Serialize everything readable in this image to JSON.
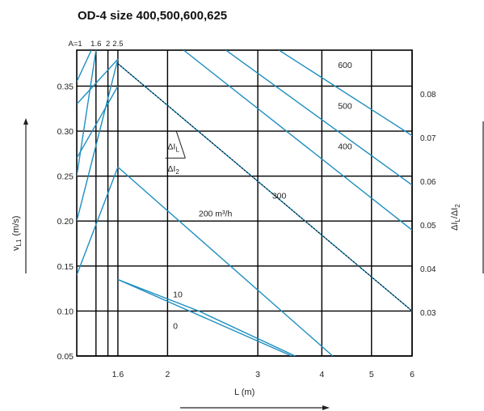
{
  "chart_data": {
    "type": "line",
    "title": "OD-4 size  400,500,600,625",
    "xlabel": "L (m)",
    "ylabel_left": "v",
    "ylabel_left_sub": "L1",
    "ylabel_left_unit": "(m/s)",
    "ylabel_right": "ΔI",
    "ylabel_right_sub1": "L",
    "ylabel_right_mid": "/ΔI",
    "ylabel_right_sub2": "2",
    "x_scale": "log",
    "x_ticks": [
      1.6,
      2,
      3,
      4,
      5,
      6
    ],
    "x_tick_labels": [
      "1.6",
      "2",
      "3",
      "4",
      "5",
      "6"
    ],
    "top_tick_labels": [
      "A=1",
      "1.6",
      "2",
      "2.5"
    ],
    "y_left_ticks": [
      0.05,
      0.1,
      0.15,
      0.2,
      0.25,
      0.3,
      0.35
    ],
    "y_left_tick_labels": [
      "0.05",
      "0.10",
      "0.15",
      "0.20",
      "0.25",
      "0.30",
      "0.35"
    ],
    "y_right_ticks": [
      0.03,
      0.04,
      0.05,
      0.06,
      0.07,
      0.08
    ],
    "y_right_tick_labels": [
      "0.03",
      "0.04",
      "0.05",
      "0.06",
      "0.07",
      "0.08"
    ],
    "grid": true,
    "rising_lines": [
      {
        "label": "A=1",
        "points": [
          [
            1.33,
            0.25
          ],
          [
            1.45,
            0.39
          ]
        ]
      },
      {
        "label": "1.6",
        "points": [
          [
            1.33,
            0.2
          ],
          [
            1.6,
            0.38
          ]
        ]
      },
      {
        "label": "2",
        "points": [
          [
            1.33,
            0.14
          ],
          [
            1.6,
            0.26
          ]
        ]
      },
      {
        "label": "2.5",
        "points": [
          [
            1.33,
            0.27
          ],
          [
            1.6,
            0.35
          ]
        ]
      },
      {
        "label": "",
        "points": [
          [
            1.33,
            0.33
          ],
          [
            1.6,
            0.38
          ]
        ]
      },
      {
        "label": "",
        "points": [
          [
            1.33,
            0.355
          ],
          [
            1.42,
            0.39
          ]
        ]
      }
    ],
    "series": [
      {
        "name": "0",
        "points": [
          [
            1.6,
            0.135
          ],
          [
            4.6,
            0.02
          ]
        ]
      },
      {
        "name": "10",
        "points": [
          [
            1.6,
            0.135
          ],
          [
            2.3,
            0.1
          ],
          [
            4.6,
            0.02
          ]
        ]
      },
      {
        "name": "200 m³/h",
        "points": [
          [
            1.6,
            0.26
          ],
          [
            4.2,
            0.05
          ]
        ]
      },
      {
        "name": "300",
        "points": [
          [
            1.6,
            0.375
          ],
          [
            6.0,
            0.1
          ]
        ]
      },
      {
        "name": "400",
        "points": [
          [
            2.15,
            0.39
          ],
          [
            6.0,
            0.19
          ]
        ]
      },
      {
        "name": "500",
        "points": [
          [
            2.6,
            0.39
          ],
          [
            6.0,
            0.24
          ]
        ]
      },
      {
        "name": "600",
        "points": [
          [
            3.3,
            0.39
          ],
          [
            6.0,
            0.295
          ]
        ]
      }
    ],
    "dotted_line": {
      "points": [
        [
          1.6,
          0.375
        ],
        [
          6.0,
          0.1
        ]
      ]
    },
    "annotations": [
      {
        "text": "ΔI",
        "sub": "L",
        "x": 2.0,
        "y": 0.28
      },
      {
        "text": "ΔI",
        "sub": "2",
        "x": 2.0,
        "y": 0.255
      },
      {
        "text": "200 m³/h",
        "x": 2.3,
        "y": 0.205
      },
      {
        "text": "300",
        "x": 3.2,
        "y": 0.225
      },
      {
        "text": "400",
        "x": 4.3,
        "y": 0.28
      },
      {
        "text": "500",
        "x": 4.3,
        "y": 0.325
      },
      {
        "text": "600",
        "x": 4.3,
        "y": 0.37
      },
      {
        "text": "10",
        "x": 2.05,
        "y": 0.115
      },
      {
        "text": "0",
        "x": 2.05,
        "y": 0.08
      }
    ],
    "colors": {
      "lines": "#1f8fc0",
      "grid": "#000000",
      "dotted": "#000000"
    }
  }
}
